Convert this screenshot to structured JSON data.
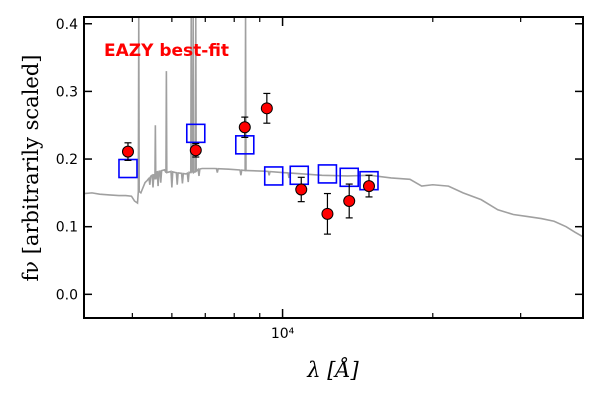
{
  "chart_data": {
    "type": "scatter",
    "x_scale": "log",
    "xlim": [
      4000,
      40000
    ],
    "ylim": [
      -0.035,
      0.41
    ],
    "xlabel": "λ [Å]",
    "ylabel": "fν [arbitrarily scaled]",
    "annotation": {
      "text": "EAZY best-fit",
      "color": "#ff0000",
      "placement": "top-left"
    },
    "x_ticks": [
      {
        "value": 10000,
        "label": "10⁴"
      }
    ],
    "x_minor_ticks": [
      5000,
      6000,
      7000,
      8000,
      9000,
      20000,
      30000
    ],
    "y_ticks": [
      {
        "value": 0.0,
        "label": "0.0"
      },
      {
        "value": 0.1,
        "label": "0.1"
      },
      {
        "value": 0.2,
        "label": "0.2"
      },
      {
        "value": 0.3,
        "label": "0.3"
      },
      {
        "value": 0.4,
        "label": "0.4"
      }
    ],
    "colors": {
      "observed": "#ff0000",
      "model": "#0000ff",
      "template": "#a0a0a0",
      "errorbar": "#000000"
    },
    "template_continuum": [
      [
        4000,
        0.149
      ],
      [
        4150,
        0.15
      ],
      [
        4300,
        0.148
      ],
      [
        4500,
        0.147
      ],
      [
        4700,
        0.146
      ],
      [
        4850,
        0.146
      ],
      [
        4980,
        0.145
      ],
      [
        5050,
        0.138
      ],
      [
        5120,
        0.135
      ],
      [
        5200,
        0.15
      ],
      [
        5300,
        0.165
      ],
      [
        5450,
        0.175
      ],
      [
        5600,
        0.181
      ],
      [
        5800,
        0.184
      ],
      [
        6100,
        0.18
      ],
      [
        6400,
        0.178
      ],
      [
        6600,
        0.183
      ],
      [
        6900,
        0.186
      ],
      [
        7300,
        0.186
      ],
      [
        7800,
        0.185
      ],
      [
        8500,
        0.183
      ],
      [
        9200,
        0.182
      ],
      [
        10000,
        0.18
      ],
      [
        11000,
        0.178
      ],
      [
        12000,
        0.176
      ],
      [
        13500,
        0.175
      ],
      [
        15000,
        0.176
      ],
      [
        16500,
        0.172
      ],
      [
        18000,
        0.17
      ],
      [
        19000,
        0.16
      ],
      [
        20000,
        0.162
      ],
      [
        21500,
        0.16
      ],
      [
        23000,
        0.15
      ],
      [
        25000,
        0.14
      ],
      [
        27000,
        0.125
      ],
      [
        29000,
        0.118
      ],
      [
        31000,
        0.115
      ],
      [
        33000,
        0.112
      ],
      [
        35000,
        0.108
      ],
      [
        37000,
        0.1
      ],
      [
        38500,
        0.092
      ],
      [
        40000,
        0.085
      ]
    ],
    "template_lines": [
      {
        "x": 5150,
        "peak": 0.41,
        "base": 0.152
      },
      {
        "x": 5850,
        "peak": 0.33,
        "base": 0.18
      },
      {
        "x": 5560,
        "peak": 0.25,
        "base": 0.17
      },
      {
        "x": 6560,
        "peak": 0.41,
        "base": 0.18
      },
      {
        "x": 6620,
        "peak": 0.41,
        "base": 0.18
      },
      {
        "x": 6700,
        "peak": 0.41,
        "base": 0.182
      },
      {
        "x": 8430,
        "peak": 0.41,
        "base": 0.183
      }
    ],
    "template_absorptions": [
      {
        "x": 5350,
        "depth": 0.168
      },
      {
        "x": 5420,
        "depth": 0.162
      },
      {
        "x": 5500,
        "depth": 0.158
      },
      {
        "x": 5630,
        "depth": 0.16
      },
      {
        "x": 5700,
        "depth": 0.165
      },
      {
        "x": 6000,
        "depth": 0.158
      },
      {
        "x": 6150,
        "depth": 0.162
      },
      {
        "x": 6300,
        "depth": 0.164
      },
      {
        "x": 6470,
        "depth": 0.166
      },
      {
        "x": 6800,
        "depth": 0.175
      },
      {
        "x": 7400,
        "depth": 0.18
      },
      {
        "x": 8250,
        "depth": 0.176
      },
      {
        "x": 9400,
        "depth": 0.176
      },
      {
        "x": 10300,
        "depth": 0.172
      }
    ],
    "model_fluxes": [
      {
        "x": 4900,
        "y": 0.186
      },
      {
        "x": 6700,
        "y": 0.238
      },
      {
        "x": 8400,
        "y": 0.221
      },
      {
        "x": 9600,
        "y": 0.175
      },
      {
        "x": 10800,
        "y": 0.176
      },
      {
        "x": 12300,
        "y": 0.178
      },
      {
        "x": 13600,
        "y": 0.173
      },
      {
        "x": 14900,
        "y": 0.168
      }
    ],
    "observed_fluxes": [
      {
        "x": 4900,
        "y": 0.211,
        "err": 0.013
      },
      {
        "x": 6700,
        "y": 0.213,
        "err": 0.01
      },
      {
        "x": 8400,
        "y": 0.247,
        "err": 0.015
      },
      {
        "x": 9300,
        "y": 0.275,
        "err": 0.022
      },
      {
        "x": 10900,
        "y": 0.155,
        "err": 0.018
      },
      {
        "x": 12300,
        "y": 0.119,
        "err": 0.03
      },
      {
        "x": 13600,
        "y": 0.138,
        "err": 0.025
      },
      {
        "x": 14900,
        "y": 0.16,
        "err": 0.016
      }
    ]
  }
}
